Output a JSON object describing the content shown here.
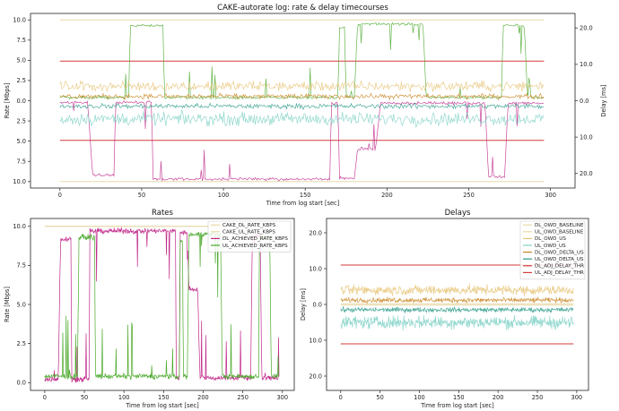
{
  "chart_data": [
    {
      "id": "top",
      "type": "line",
      "title": "CAKE-autorate log: rate & delay timecourses",
      "xlabel": "Time from log start [sec]",
      "ylabel": "Rate [Mbps]",
      "ylabel_right": "Delay [ms]",
      "xlim": [
        -18,
        315
      ],
      "ylim": [
        10.8,
        -10.8
      ],
      "ylim_right": [
        -24,
        24
      ],
      "xticks": [
        0,
        50,
        100,
        150,
        200,
        250,
        300
      ],
      "yticks": [
        10,
        7.5,
        5,
        2.5,
        0,
        -2.5,
        -5,
        -7.5,
        -10
      ],
      "yticklabels": [
        "10.0",
        "7.5",
        "5.0",
        "2.5",
        "0.0",
        "2.5",
        "5.0",
        "7.5",
        "10.0"
      ],
      "yticks_right": [
        20,
        10,
        0,
        -10,
        -20
      ],
      "yticklabels_right": [
        "20.0",
        "10.0",
        "0.0",
        "10.0",
        "20.0"
      ],
      "series": [
        {
          "key": "cake_dl",
          "color": "#e8d9a8",
          "axis": "left",
          "x": [
            0,
            296
          ],
          "y": [
            10,
            10
          ]
        },
        {
          "key": "cake_ul",
          "color": "#e8d9a8",
          "axis": "left",
          "x": [
            0,
            296
          ],
          "y": [
            -10,
            -10
          ]
        },
        {
          "key": "dl_adj_thr",
          "color": "#d33a3a",
          "axis": "left",
          "x": [
            0,
            296
          ],
          "y": [
            4.9,
            4.9
          ]
        },
        {
          "key": "ul_adj_thr",
          "color": "#d33a3a",
          "axis": "left",
          "x": [
            0,
            296
          ],
          "y": [
            -4.9,
            -4.9
          ]
        },
        {
          "key": "dl_achieved",
          "color": "#c0288a",
          "axis": "left",
          "x": [
            0,
            17,
            20,
            33,
            34,
            56,
            57,
            165,
            166,
            170,
            171,
            180,
            182,
            193,
            196,
            260,
            262,
            272,
            274,
            296
          ],
          "y": [
            0.2,
            0.2,
            9.2,
            9.2,
            0.2,
            0.2,
            9.7,
            9.7,
            0.3,
            0.3,
            9.6,
            9.6,
            6.0,
            6.0,
            0.3,
            0.3,
            9.4,
            9.4,
            0.3,
            0.3
          ]
        },
        {
          "key": "ul_achieved",
          "color": "#4aa82a",
          "axis": "left",
          "x": [
            0,
            42,
            43,
            63,
            64,
            170,
            171,
            174,
            175,
            180,
            182,
            222,
            224,
            270,
            271,
            284,
            286,
            296
          ],
          "y": [
            -0.4,
            -0.4,
            -9.3,
            -9.3,
            -0.4,
            -0.4,
            -9.0,
            -9.0,
            -0.4,
            -0.4,
            -9.5,
            -9.5,
            -0.4,
            -0.4,
            -9.3,
            -9.3,
            -0.4,
            -0.4
          ]
        }
      ]
    },
    {
      "id": "rates",
      "type": "line",
      "title": "Rates",
      "xlabel": "Time from log start [sec]",
      "ylabel": "Rate [Mbps]",
      "xlim": [
        -18,
        315
      ],
      "ylim": [
        -0.5,
        10.5
      ],
      "xticks": [
        0,
        50,
        100,
        150,
        200,
        250,
        300
      ],
      "yticks": [
        10,
        7.5,
        5,
        2.5,
        0
      ],
      "yticklabels": [
        "10.0",
        "7.5",
        "5.0",
        "2.5",
        "0.0"
      ],
      "legend_position": "top-right",
      "series": [
        {
          "name": "CAKE_DL_RATE_KBPS",
          "color": "#e8d9a8",
          "x": [
            0,
            296
          ],
          "y": [
            10,
            10
          ]
        },
        {
          "name": "CAKE_UL_RATE_KBPS",
          "color": "#e8d9a8",
          "x": [
            0,
            296
          ],
          "y": [
            10,
            10
          ]
        },
        {
          "name": "DL_ACHIEVED_RATE_KBPS",
          "color": "#c0288a",
          "x": [
            0,
            17,
            20,
            33,
            34,
            56,
            57,
            165,
            166,
            170,
            171,
            180,
            182,
            193,
            196,
            260,
            262,
            272,
            274,
            296
          ],
          "y": [
            0.2,
            0.2,
            9.2,
            9.2,
            0.2,
            0.2,
            9.7,
            9.7,
            0.3,
            0.3,
            9.6,
            9.6,
            6.0,
            6.0,
            0.3,
            0.3,
            9.4,
            9.4,
            0.3,
            0.3
          ]
        },
        {
          "name": "UL_ACHIEVED_RATE_KBPS",
          "color": "#4aa82a",
          "x": [
            0,
            42,
            43,
            63,
            64,
            170,
            171,
            174,
            175,
            180,
            182,
            222,
            224,
            270,
            271,
            284,
            286,
            296
          ],
          "y": [
            0.4,
            0.4,
            9.3,
            9.3,
            0.4,
            0.4,
            9.0,
            9.0,
            0.4,
            0.4,
            9.5,
            9.5,
            0.4,
            0.4,
            9.3,
            9.3,
            0.4,
            0.4
          ]
        }
      ]
    },
    {
      "id": "delays",
      "type": "line",
      "title": "Delays",
      "xlabel": "Time from log start [sec]",
      "ylabel": "Delay [ms]",
      "xlim": [
        -18,
        315
      ],
      "ylim": [
        -24,
        24
      ],
      "xticks": [
        0,
        50,
        100,
        150,
        200,
        250,
        300
      ],
      "yticks": [
        20,
        10,
        0,
        -10,
        -20
      ],
      "yticklabels": [
        "20.0",
        "10.0",
        "0.0",
        "10.0",
        "20.0"
      ],
      "legend_position": "top-right",
      "series": [
        {
          "name": "DL_OWD_BASELINE",
          "color": "#e8d9a8",
          "x": [
            0,
            296
          ],
          "y": [
            0.2,
            0.2
          ]
        },
        {
          "name": "UL_OWD_BASELINE",
          "color": "#e8d9a8",
          "x": [
            0,
            296
          ],
          "y": [
            -0.2,
            -0.2
          ]
        },
        {
          "name": "DL_OWD_US",
          "color": "#e6c477",
          "x": [
            0,
            296
          ],
          "y": [
            4.0,
            4.0
          ]
        },
        {
          "name": "UL_OWD_US",
          "color": "#7fd1c6",
          "x": [
            0,
            296
          ],
          "y": [
            -5.0,
            -5.0
          ]
        },
        {
          "name": "DL_OWD_DELTA_US",
          "color": "#c8841e",
          "x": [
            0,
            296
          ],
          "y": [
            1.2,
            1.2
          ]
        },
        {
          "name": "UL_OWD_DELTA_US",
          "color": "#2a9a8a",
          "x": [
            0,
            296
          ],
          "y": [
            -1.5,
            -1.5
          ]
        },
        {
          "name": "DL_ADJ_DELAY_THR",
          "color": "#d33a3a",
          "x": [
            0,
            296
          ],
          "y": [
            11.0,
            11.0
          ]
        },
        {
          "name": "UL_ADJ_DELAY_THR",
          "color": "#d33a3a",
          "x": [
            0,
            296
          ],
          "y": [
            -11.0,
            -11.0
          ]
        }
      ]
    }
  ]
}
